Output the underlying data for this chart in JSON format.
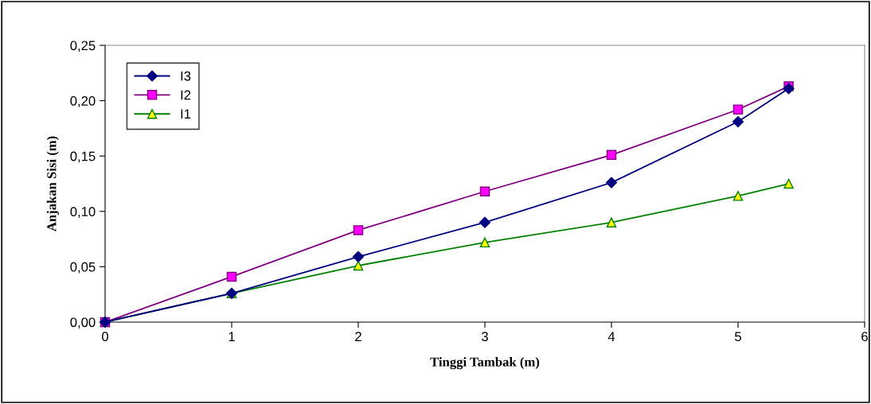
{
  "chart_data": {
    "type": "line",
    "xlabel": "Tinggi Tambak (m)",
    "ylabel": "Anjakan Sisi (m)",
    "xlim": [
      0,
      6
    ],
    "xticks": [
      0,
      1,
      2,
      3,
      4,
      5,
      6
    ],
    "ylim": [
      0,
      0.25
    ],
    "yticks": [
      {
        "value": 0,
        "label": "0,00"
      },
      {
        "value": 0.05,
        "label": "0,05"
      },
      {
        "value": 0.1,
        "label": "0,10"
      },
      {
        "value": 0.15,
        "label": "0,15"
      },
      {
        "value": 0.2,
        "label": "0,20"
      },
      {
        "value": 0.25,
        "label": "0,25"
      }
    ],
    "grid": false,
    "legend": "top left",
    "series": [
      {
        "name": "I3",
        "color": "#000080",
        "marker": "diamond",
        "x": [
          0,
          1,
          2,
          3,
          4,
          5,
          5.4
        ],
        "values": [
          0,
          0.026,
          0.059,
          0.09,
          0.126,
          0.181,
          0.211
        ]
      },
      {
        "name": "I2",
        "color": "#800080",
        "marker": "square",
        "x": [
          0,
          1,
          2,
          3,
          4,
          5,
          5.4
        ],
        "values": [
          0,
          0.041,
          0.083,
          0.118,
          0.151,
          0.192,
          0.213
        ]
      },
      {
        "name": "I1",
        "color": "#008000",
        "marker": "triangle",
        "x": [
          0,
          1,
          2,
          3,
          4,
          5,
          5.4
        ],
        "values": [
          0,
          0.026,
          0.051,
          0.072,
          0.09,
          0.114,
          0.125
        ]
      }
    ]
  }
}
